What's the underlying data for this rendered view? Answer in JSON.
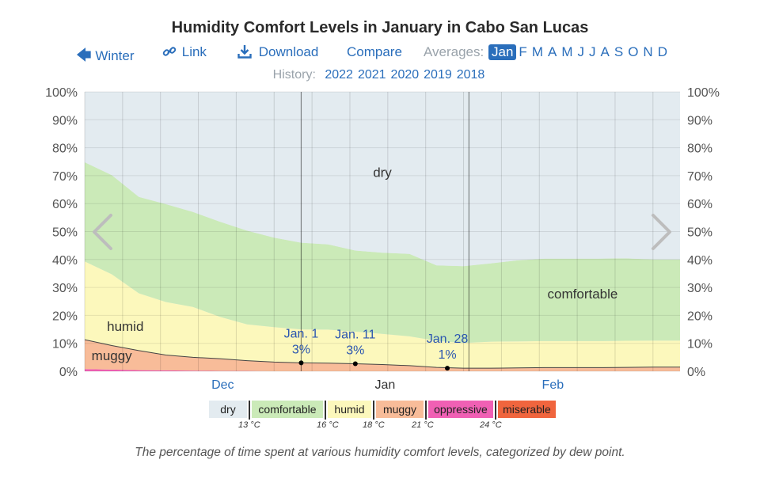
{
  "header": {
    "title": "Humidity Comfort Levels in January in Cabo San Lucas",
    "nav": {
      "winter": "Winter",
      "link": "Link",
      "download": "Download",
      "compare": "Compare",
      "averages_label": "Averages:",
      "months": [
        "Jan",
        "F",
        "M",
        "A",
        "M",
        "J",
        "J",
        "A",
        "S",
        "O",
        "N",
        "D"
      ],
      "active_month": "Jan"
    },
    "history": {
      "label": "History:",
      "years": [
        "2022",
        "2021",
        "2020",
        "2019",
        "2018"
      ]
    }
  },
  "chart_data": {
    "type": "area",
    "x_unit": "days relative to January 1",
    "x": [
      -40,
      -35,
      -30,
      -25,
      -20,
      -15,
      -10,
      -5,
      0,
      5,
      10,
      15,
      20,
      25,
      30,
      35,
      40,
      45,
      50,
      55,
      60,
      65,
      70
    ],
    "series": [
      {
        "name": "miserable",
        "color": "#f0653e",
        "values": [
          0,
          0,
          0,
          0,
          0,
          0,
          0,
          0,
          0,
          0,
          0,
          0,
          0,
          0,
          0,
          0,
          0,
          0,
          0,
          0,
          0,
          0,
          0
        ]
      },
      {
        "name": "oppressive",
        "color": "#f060b4",
        "values": [
          0.8,
          0.6,
          0.4,
          0.3,
          0.2,
          0.1,
          0.1,
          0,
          0,
          0,
          0,
          0,
          0,
          0,
          0,
          0,
          0,
          0,
          0,
          0,
          0,
          0,
          0
        ]
      },
      {
        "name": "muggy",
        "color": "#f8bc99",
        "values": [
          10.5,
          8.6,
          7.0,
          5.5,
          4.8,
          4.4,
          3.7,
          3.3,
          3.0,
          2.9,
          2.7,
          2.4,
          2.0,
          1.4,
          1.1,
          1.1,
          1.2,
          1.3,
          1.3,
          1.3,
          1.4,
          1.5,
          1.5
        ]
      },
      {
        "name": "humid",
        "color": "#fcf8bc",
        "values": [
          28,
          25.5,
          20.5,
          19.0,
          18,
          15,
          13,
          12.5,
          12,
          12,
          11.5,
          11,
          10.5,
          9.5,
          9,
          9.5,
          9.5,
          9.5,
          9.5,
          9.5,
          9.5,
          9.5,
          9.5
        ]
      },
      {
        "name": "comfortable",
        "color": "#cbeab8",
        "values": [
          35.5,
          35.5,
          34.5,
          35.0,
          34,
          34,
          33.5,
          32,
          31,
          30.5,
          29,
          29,
          29.5,
          27,
          27.5,
          28,
          29,
          29.5,
          29.5,
          29.5,
          29.5,
          29,
          29
        ]
      },
      {
        "name": "dry",
        "color": "#e3ebf0",
        "values": [
          25.2,
          29.8,
          37.6,
          40.2,
          43.0,
          46.5,
          49.7,
          52.2,
          54.0,
          54.6,
          56.8,
          57.6,
          58.0,
          62.1,
          62.4,
          61.4,
          60.3,
          59.7,
          59.7,
          59.7,
          59.6,
          60.0,
          60.0
        ]
      }
    ],
    "ylim": [
      0,
      100
    ],
    "yticks": [
      "0%",
      "10%",
      "20%",
      "30%",
      "40%",
      "50%",
      "60%",
      "70%",
      "80%",
      "90%",
      "100%"
    ],
    "xtick_labels": [
      {
        "label": "Dec",
        "x": -30
      },
      {
        "label": "Jan",
        "x": 0
      },
      {
        "label": "Feb",
        "x": 31
      }
    ],
    "highlight_start": 0,
    "highlight_end": 31,
    "area_labels": [
      {
        "text": "dry",
        "x": 15,
        "y": 69.5
      },
      {
        "text": "comfortable",
        "x": 52,
        "y": 26
      },
      {
        "text": "humid",
        "x": -32.5,
        "y": 14.5
      },
      {
        "text": "muggy",
        "x": -35,
        "y": 4
      }
    ],
    "annotations": [
      {
        "date": "Jan. 1",
        "value": "3%",
        "x": 0,
        "y": 3.0
      },
      {
        "date": "Jan. 11",
        "value": "3%",
        "x": 10,
        "y": 2.7
      },
      {
        "date": "Jan. 28",
        "value": "1%",
        "x": 27,
        "y": 1.1
      }
    ],
    "grid": true
  },
  "legend": {
    "items": [
      {
        "label": "dry",
        "color": "#e3ebf0"
      },
      {
        "label": "comfortable",
        "color": "#cbeab8"
      },
      {
        "label": "humid",
        "color": "#fcf8bc"
      },
      {
        "label": "muggy",
        "color": "#f8bc99"
      },
      {
        "label": "oppressive",
        "color": "#f060b4"
      },
      {
        "label": "miserable",
        "color": "#f0653e"
      }
    ],
    "thresholds": [
      "13 °C",
      "16 °C",
      "18 °C",
      "21 °C",
      "24 °C"
    ]
  },
  "caption": "The percentage of time spent at various humidity comfort levels, categorized by dew point.",
  "colors": {
    "link": "#2a6ebb",
    "muted": "#9aa3ab"
  }
}
